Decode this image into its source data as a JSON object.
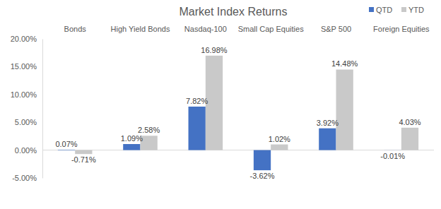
{
  "chart_data": {
    "type": "bar",
    "title": "Market Index Returns",
    "categories": [
      "Bonds",
      "High Yield Bonds",
      "Nasdaq-100",
      "Small Cap Equities",
      "S&P 500",
      "Foreign Equities"
    ],
    "series": [
      {
        "name": "QTD",
        "color": "#4472c4",
        "values": [
          0.07,
          1.09,
          7.82,
          -3.62,
          3.92,
          -0.01
        ],
        "value_labels": [
          "0.07%",
          "1.09%",
          "7.82%",
          "-3.62%",
          "3.92%",
          "-0.01%"
        ]
      },
      {
        "name": "YTD",
        "color": "#c9c9c9",
        "values": [
          -0.71,
          2.58,
          16.98,
          1.02,
          14.48,
          4.03
        ],
        "value_labels": [
          "-0.71%",
          "2.58%",
          "16.98%",
          "1.02%",
          "14.48%",
          "4.03%"
        ]
      }
    ],
    "ylim": [
      -5,
      20
    ],
    "yticks": [
      {
        "value": -5,
        "label": "-5.00%"
      },
      {
        "value": 0,
        "label": "0.00%"
      },
      {
        "value": 5,
        "label": "5.00%"
      },
      {
        "value": 10,
        "label": "10.00%"
      },
      {
        "value": 15,
        "label": "15.00%"
      },
      {
        "value": 20,
        "label": "20.00%"
      }
    ],
    "grid": false,
    "legend": "top-right",
    "data_labels": true
  }
}
